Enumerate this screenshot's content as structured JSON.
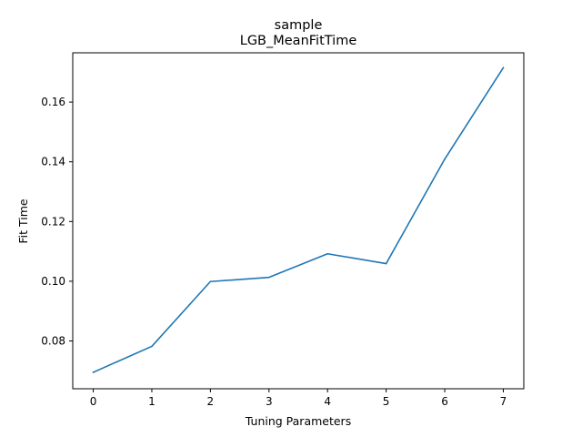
{
  "chart_data": {
    "type": "line",
    "title": "sample",
    "subtitle": "LGB_MeanFitTime",
    "xlabel": "Tuning Parameters",
    "ylabel": "Fit Time",
    "xlim": [
      -0.35,
      7.35
    ],
    "ylim": [
      0.064,
      0.1765
    ],
    "xticks": [
      0,
      1,
      2,
      3,
      4,
      5,
      6,
      7
    ],
    "yticks": [
      0.08,
      0.1,
      0.12,
      0.14,
      0.16
    ],
    "ytick_labels": [
      "0.08",
      "0.10",
      "0.12",
      "0.14",
      "0.16"
    ],
    "grid": false,
    "series": [
      {
        "color": "#1f77b4",
        "x": [
          0,
          1,
          2,
          3,
          4,
          5,
          6,
          7
        ],
        "values": [
          0.0695,
          0.0782,
          0.0999,
          0.1013,
          0.1092,
          0.1059,
          0.1409,
          0.1715
        ]
      }
    ]
  }
}
